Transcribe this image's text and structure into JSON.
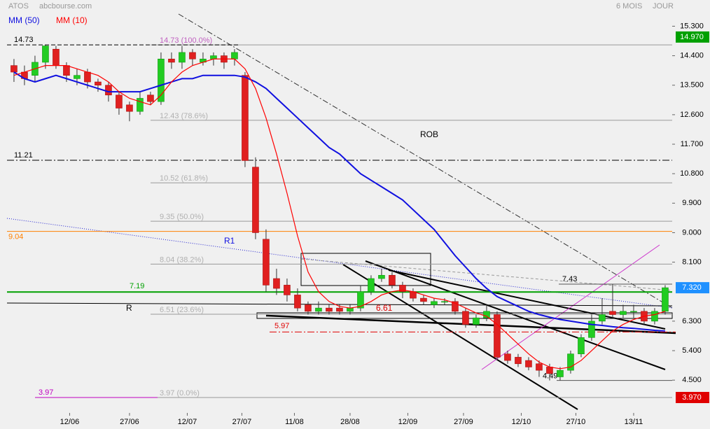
{
  "chart_data": {
    "type": "candlestick",
    "title": "ATOS",
    "source": "abcbourse.com",
    "period": "6 MOIS",
    "interval": "JOUR",
    "x": [
      0,
      1,
      2,
      3,
      4,
      5,
      6,
      7,
      8,
      9,
      10,
      11,
      12,
      13,
      14,
      15,
      16,
      17,
      18,
      19,
      20,
      21,
      22,
      23,
      24,
      25,
      26,
      27,
      28,
      29,
      30,
      31,
      32,
      33,
      34,
      35,
      36,
      37,
      38,
      39,
      40,
      41,
      42,
      43,
      44,
      45,
      46,
      47,
      48,
      49,
      50,
      51,
      52,
      53,
      54,
      55,
      56,
      57,
      58,
      59,
      60,
      61,
      62
    ],
    "open": [
      14.1,
      13.9,
      13.8,
      14.2,
      14.6,
      14.1,
      13.7,
      13.9,
      13.6,
      13.5,
      13.2,
      12.9,
      12.7,
      13.2,
      13.0,
      14.3,
      14.2,
      14.5,
      14.2,
      14.3,
      14.4,
      14.3,
      13.8,
      11.0,
      8.8,
      7.6,
      7.4,
      7.1,
      6.8,
      6.6,
      6.7,
      6.7,
      6.6,
      6.7,
      7.2,
      7.6,
      7.7,
      7.4,
      7.2,
      7.0,
      6.8,
      6.9,
      6.9,
      6.6,
      6.2,
      6.4,
      6.5,
      5.3,
      5.2,
      5.1,
      5.0,
      4.9,
      4.6,
      4.8,
      5.3,
      5.8,
      6.3,
      6.6,
      6.5,
      6.6,
      6.6,
      6.3,
      6.6
    ],
    "high": [
      14.3,
      14.1,
      14.4,
      14.73,
      14.7,
      14.2,
      14.0,
      14.0,
      13.7,
      13.6,
      13.3,
      13.0,
      13.3,
      13.3,
      14.5,
      14.5,
      14.7,
      14.6,
      14.5,
      14.5,
      14.5,
      14.6,
      13.9,
      11.3,
      9.1,
      7.9,
      7.6,
      7.3,
      6.9,
      6.9,
      6.8,
      6.8,
      6.8,
      7.4,
      7.7,
      7.9,
      7.8,
      7.5,
      7.3,
      7.1,
      7.0,
      7.0,
      7.0,
      6.7,
      6.5,
      6.8,
      6.6,
      5.4,
      5.3,
      5.2,
      5.1,
      5.0,
      4.9,
      5.4,
      5.9,
      6.5,
      7.0,
      7.43,
      6.8,
      6.8,
      6.7,
      6.7,
      7.4
    ],
    "low": [
      13.6,
      13.5,
      13.6,
      14.0,
      14.0,
      13.6,
      13.5,
      13.4,
      13.3,
      13.0,
      12.6,
      12.4,
      12.6,
      12.9,
      12.9,
      14.0,
      14.0,
      14.1,
      14.1,
      14.1,
      14.0,
      14.1,
      11.0,
      8.8,
      7.2,
      7.1,
      6.9,
      6.6,
      6.5,
      6.5,
      6.5,
      6.5,
      6.5,
      6.6,
      7.1,
      7.5,
      7.3,
      7.0,
      6.9,
      6.8,
      6.7,
      6.8,
      6.5,
      6.1,
      6.1,
      6.3,
      5.1,
      5.0,
      4.9,
      4.8,
      4.6,
      4.49,
      4.49,
      4.7,
      5.2,
      5.7,
      6.2,
      6.4,
      6.4,
      6.4,
      6.2,
      6.2,
      6.5
    ],
    "close": [
      13.9,
      13.7,
      14.2,
      14.7,
      14.1,
      13.8,
      13.8,
      13.6,
      13.5,
      13.2,
      12.8,
      12.7,
      13.1,
      13.0,
      14.3,
      14.2,
      14.5,
      14.3,
      14.3,
      14.4,
      14.2,
      14.5,
      11.2,
      9.0,
      7.4,
      7.3,
      7.1,
      6.7,
      6.6,
      6.7,
      6.6,
      6.6,
      6.7,
      7.2,
      7.6,
      7.7,
      7.4,
      7.2,
      7.0,
      6.9,
      6.9,
      6.9,
      6.6,
      6.2,
      6.4,
      6.6,
      5.2,
      5.1,
      5.0,
      4.9,
      4.8,
      4.7,
      4.8,
      5.3,
      5.8,
      6.3,
      6.5,
      6.5,
      6.6,
      6.6,
      6.3,
      6.6,
      7.32
    ],
    "up_color": "#22cc22",
    "down_color": "#e02020",
    "series": [
      {
        "name": "MM (50)",
        "color": "#1010e0",
        "values": [
          13.9,
          13.7,
          13.6,
          13.7,
          13.8,
          13.7,
          13.6,
          13.5,
          13.4,
          13.3,
          13.3,
          13.3,
          13.3,
          13.4,
          13.5,
          13.6,
          13.7,
          13.7,
          13.8,
          13.8,
          13.8,
          13.8,
          13.75,
          13.6,
          13.4,
          13.1,
          12.8,
          12.5,
          12.2,
          11.9,
          11.6,
          11.4,
          11.1,
          10.8,
          10.6,
          10.4,
          10.2,
          10.0,
          9.7,
          9.4,
          9.1,
          8.7,
          8.3,
          7.95,
          7.6,
          7.3,
          7.05,
          6.9,
          6.75,
          6.6,
          6.5,
          6.42,
          6.35,
          6.3,
          6.25,
          6.2,
          6.17,
          6.13,
          6.1,
          6.08,
          6.05,
          6.02,
          6.0
        ]
      },
      {
        "name": "MM (10)",
        "color": "#ff0000",
        "values": [
          13.8,
          13.9,
          14.0,
          14.1,
          14.1,
          14.1,
          14.0,
          13.9,
          13.8,
          13.6,
          13.3,
          13.1,
          13.0,
          12.9,
          13.2,
          13.6,
          13.9,
          14.1,
          14.2,
          14.3,
          14.3,
          14.3,
          14.0,
          13.4,
          12.5,
          11.4,
          10.2,
          8.9,
          7.8,
          7.2,
          6.9,
          6.75,
          6.7,
          6.75,
          6.9,
          7.1,
          7.2,
          7.25,
          7.2,
          7.1,
          7.0,
          6.95,
          6.85,
          6.7,
          6.55,
          6.45,
          6.2,
          5.9,
          5.6,
          5.3,
          5.05,
          4.9,
          4.85,
          4.9,
          5.1,
          5.4,
          5.7,
          6.0,
          6.2,
          6.35,
          6.45,
          6.5,
          6.6
        ]
      }
    ],
    "xlim": [
      -1.33,
      62.67
    ],
    "xticks": [
      {
        "value": 5.3,
        "label": "12/06"
      },
      {
        "value": 11,
        "label": "27/06"
      },
      {
        "value": 16.5,
        "label": "12/07"
      },
      {
        "value": 21.7,
        "label": "27/07"
      },
      {
        "value": 26.7,
        "label": "11/08"
      },
      {
        "value": 32,
        "label": "28/08"
      },
      {
        "value": 37.5,
        "label": "12/09"
      },
      {
        "value": 42.8,
        "label": "27/09"
      },
      {
        "value": 48.3,
        "label": "12/10"
      },
      {
        "value": 53.5,
        "label": "27/10"
      },
      {
        "value": 59,
        "label": "13/11"
      }
    ],
    "ylim": [
      3.5,
      16.1
    ],
    "yticks": [
      {
        "value": 15.3,
        "label": "15.300"
      },
      {
        "value": 14.4,
        "label": "14.400"
      },
      {
        "value": 13.5,
        "label": "13.500"
      },
      {
        "value": 12.6,
        "label": "12.600"
      },
      {
        "value": 11.7,
        "label": "11.700"
      },
      {
        "value": 10.8,
        "label": "10.800"
      },
      {
        "value": 9.9,
        "label": "9.900"
      },
      {
        "value": 9,
        "label": "9.000"
      },
      {
        "value": 8.1,
        "label": "8.100"
      },
      {
        "value": 6.3,
        "label": "6.300"
      },
      {
        "value": 5.4,
        "label": "5.400"
      },
      {
        "value": 4.5,
        "label": "4.500"
      }
    ],
    "levels": [
      {
        "value": 14.73,
        "label": "14.73",
        "color": "#000000"
      },
      {
        "value": 11.21,
        "label": "11.21",
        "color": "#000000"
      },
      {
        "value": 9.04,
        "label": "9.04",
        "color": "#ff8000"
      },
      {
        "value": 7.19,
        "label": "7.19",
        "color": "#00a000"
      },
      {
        "value": 5.97,
        "label": "5.97",
        "color": "#e00000"
      },
      {
        "value": 3.97,
        "label": "3.97",
        "color": "#c000c0"
      },
      {
        "value": 7.43,
        "label": "7.43",
        "color": "#000000"
      },
      {
        "value": 4.49,
        "label": "4.49",
        "color": "#000000"
      }
    ],
    "fib_levels": [
      {
        "value": 14.73,
        "label": "14.73 (100.0%)"
      },
      {
        "value": 12.43,
        "label": "12.43 (78.6%)"
      },
      {
        "value": 10.52,
        "label": "10.52 (61.8%)"
      },
      {
        "value": 9.35,
        "label": "9.35 (50.0%)"
      },
      {
        "value": 8.04,
        "label": "8.04 (38.2%)"
      },
      {
        "value": 6.51,
        "label": "6.51 (23.6%)"
      },
      {
        "value": 3.97,
        "label": "3.97 (0.0%)"
      }
    ],
    "annotations": [
      "ROB",
      "R1",
      "R",
      "6.61"
    ],
    "price_tags": [
      {
        "value": 14.97,
        "label": "14.970",
        "color": "#00a000"
      },
      {
        "value": 7.32,
        "label": "7.320",
        "color": "#1e90ff"
      },
      {
        "value": 3.97,
        "label": "3.970",
        "color": "#e00000"
      }
    ]
  }
}
